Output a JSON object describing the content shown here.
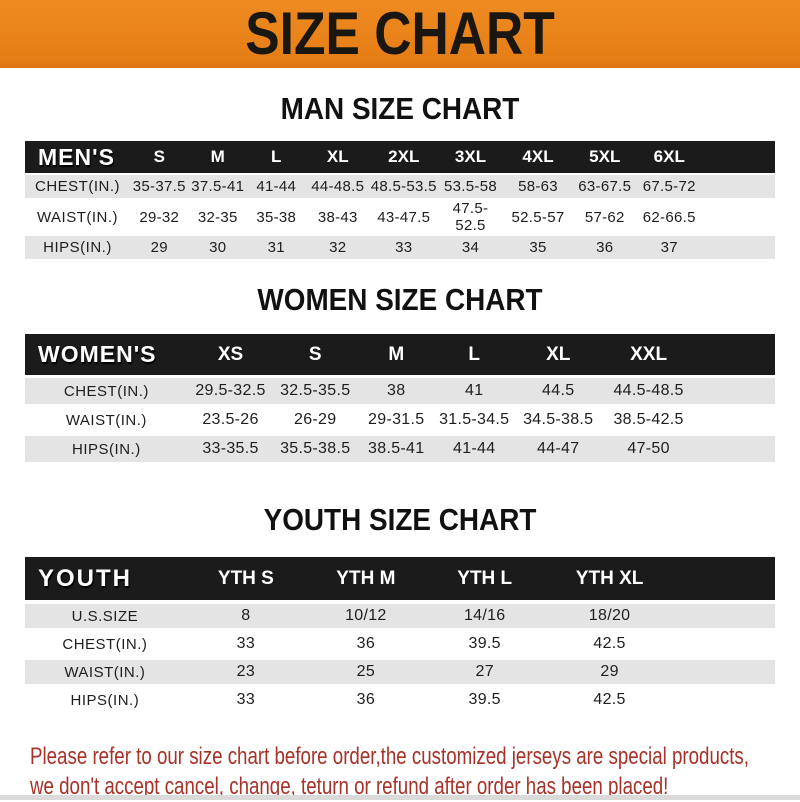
{
  "banner": {
    "title": "SIZE CHART",
    "bg_color": "#E8811E",
    "text_color": "#1A1712"
  },
  "colors": {
    "bar_black": "#1B1B1B",
    "row_gray": "#E4E4E4",
    "row_white": "#FFFFFF",
    "footer_red": "#A93228"
  },
  "sections": [
    {
      "heading": "MAN SIZE CHART",
      "table": {
        "header_label": "MEN'S",
        "columns": [
          "S",
          "M",
          "L",
          "XL",
          "2XL",
          "3XL",
          "4XL",
          "5XL",
          "6XL"
        ],
        "rows": [
          {
            "label": "CHEST(IN.)",
            "values": [
              "35-37.5",
              "37.5-41",
              "41-44",
              "44-48.5",
              "48.5-53.5",
              "53.5-58",
              "58-63",
              "63-67.5",
              "67.5-72"
            ]
          },
          {
            "label": "WAIST(IN.)",
            "values": [
              "29-32",
              "32-35",
              "35-38",
              "38-43",
              "43-47.5",
              "47.5-52.5",
              "52.5-57",
              "57-62",
              "62-66.5"
            ]
          },
          {
            "label": "HIPS(IN.)",
            "values": [
              "29",
              "30",
              "31",
              "32",
              "33",
              "34",
              "35",
              "36",
              "37"
            ]
          }
        ]
      }
    },
    {
      "heading": "WOMEN SIZE CHART",
      "table": {
        "header_label": "WOMEN'S",
        "columns": [
          "XS",
          "S",
          "M",
          "L",
          "XL",
          "XXL"
        ],
        "rows": [
          {
            "label": "CHEST(IN.)",
            "values": [
              "29.5-32.5",
              "32.5-35.5",
              "38",
              "41",
              "44.5",
              "44.5-48.5"
            ]
          },
          {
            "label": "WAIST(IN.)",
            "values": [
              "23.5-26",
              "26-29",
              "29-31.5",
              "31.5-34.5",
              "34.5-38.5",
              "38.5-42.5"
            ]
          },
          {
            "label": "HIPS(IN.)",
            "values": [
              "33-35.5",
              "35.5-38.5",
              "38.5-41",
              "41-44",
              "44-47",
              "47-50"
            ]
          }
        ]
      }
    },
    {
      "heading": "YOUTH SIZE CHART",
      "table": {
        "header_label": "YOUTH",
        "columns": [
          "YTH S",
          "YTH M",
          "YTH L",
          "YTH XL"
        ],
        "rows": [
          {
            "label": "U.S.SIZE",
            "values": [
              "8",
              "10/12",
              "14/16",
              "18/20"
            ]
          },
          {
            "label": "CHEST(IN.)",
            "values": [
              "33",
              "36",
              "39.5",
              "42.5"
            ]
          },
          {
            "label": "WAIST(IN.)",
            "values": [
              "23",
              "25",
              "27",
              "29"
            ]
          },
          {
            "label": "HIPS(IN.)",
            "values": [
              "33",
              "36",
              "39.5",
              "42.5"
            ]
          }
        ]
      }
    }
  ],
  "footer": {
    "line1": "Please refer to our size chart before order,the customized jerseys are special products,",
    "line2": "we don't accept cancel, change, teturn or refund after order has been placed!"
  }
}
